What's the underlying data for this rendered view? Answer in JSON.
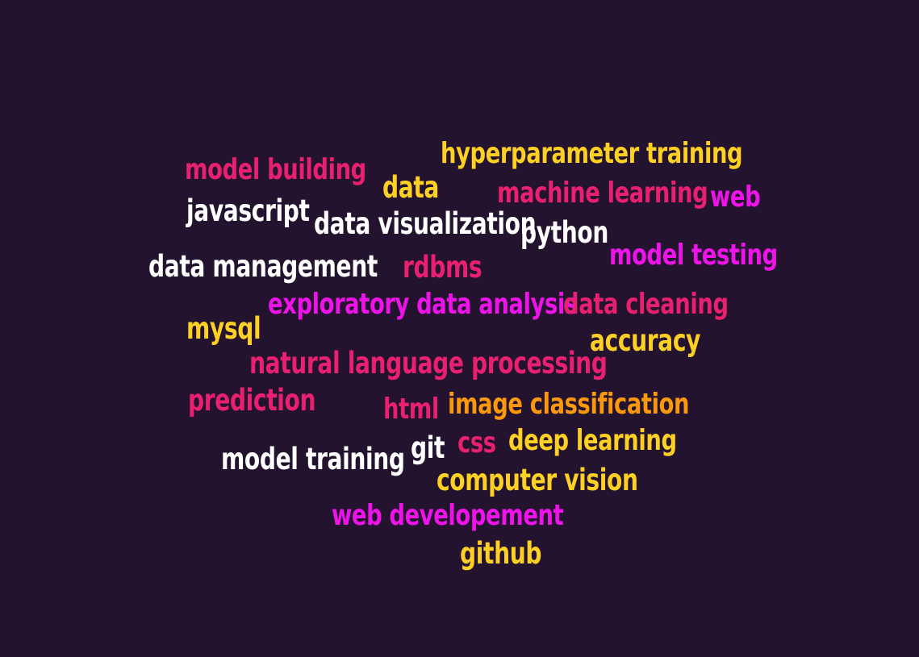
{
  "cloud": {
    "words": [
      {
        "text": "hyperparameter training",
        "color": "#fdd023"
      },
      {
        "text": "model building",
        "color": "#e8206f"
      },
      {
        "text": "data",
        "color": "#fdd023"
      },
      {
        "text": "machine learning",
        "color": "#e8206f"
      },
      {
        "text": "web",
        "color": "#ee14e9"
      },
      {
        "text": "javascript",
        "color": "#ffffff"
      },
      {
        "text": "data visualization",
        "color": "#ffffff"
      },
      {
        "text": "python",
        "color": "#ffffff"
      },
      {
        "text": "model testing",
        "color": "#ee14e9"
      },
      {
        "text": "data management",
        "color": "#ffffff"
      },
      {
        "text": "rdbms",
        "color": "#e8206f"
      },
      {
        "text": "exploratory data analysis",
        "color": "#ee14e9"
      },
      {
        "text": "data cleaning",
        "color": "#e8206f"
      },
      {
        "text": "mysql",
        "color": "#fdd023"
      },
      {
        "text": "accuracy",
        "color": "#fdd023"
      },
      {
        "text": "natural language processing",
        "color": "#e8206f"
      },
      {
        "text": "prediction",
        "color": "#e8206f"
      },
      {
        "text": "html",
        "color": "#e8206f"
      },
      {
        "text": "image classification",
        "color": "#fb980b"
      },
      {
        "text": "git",
        "color": "#ffffff"
      },
      {
        "text": "css",
        "color": "#e8206f"
      },
      {
        "text": "deep learning",
        "color": "#fdd023"
      },
      {
        "text": "model training",
        "color": "#ffffff"
      },
      {
        "text": "computer vision",
        "color": "#fdd023"
      },
      {
        "text": "web developement",
        "color": "#ee14e9"
      },
      {
        "text": "github",
        "color": "#fdd023"
      }
    ]
  }
}
